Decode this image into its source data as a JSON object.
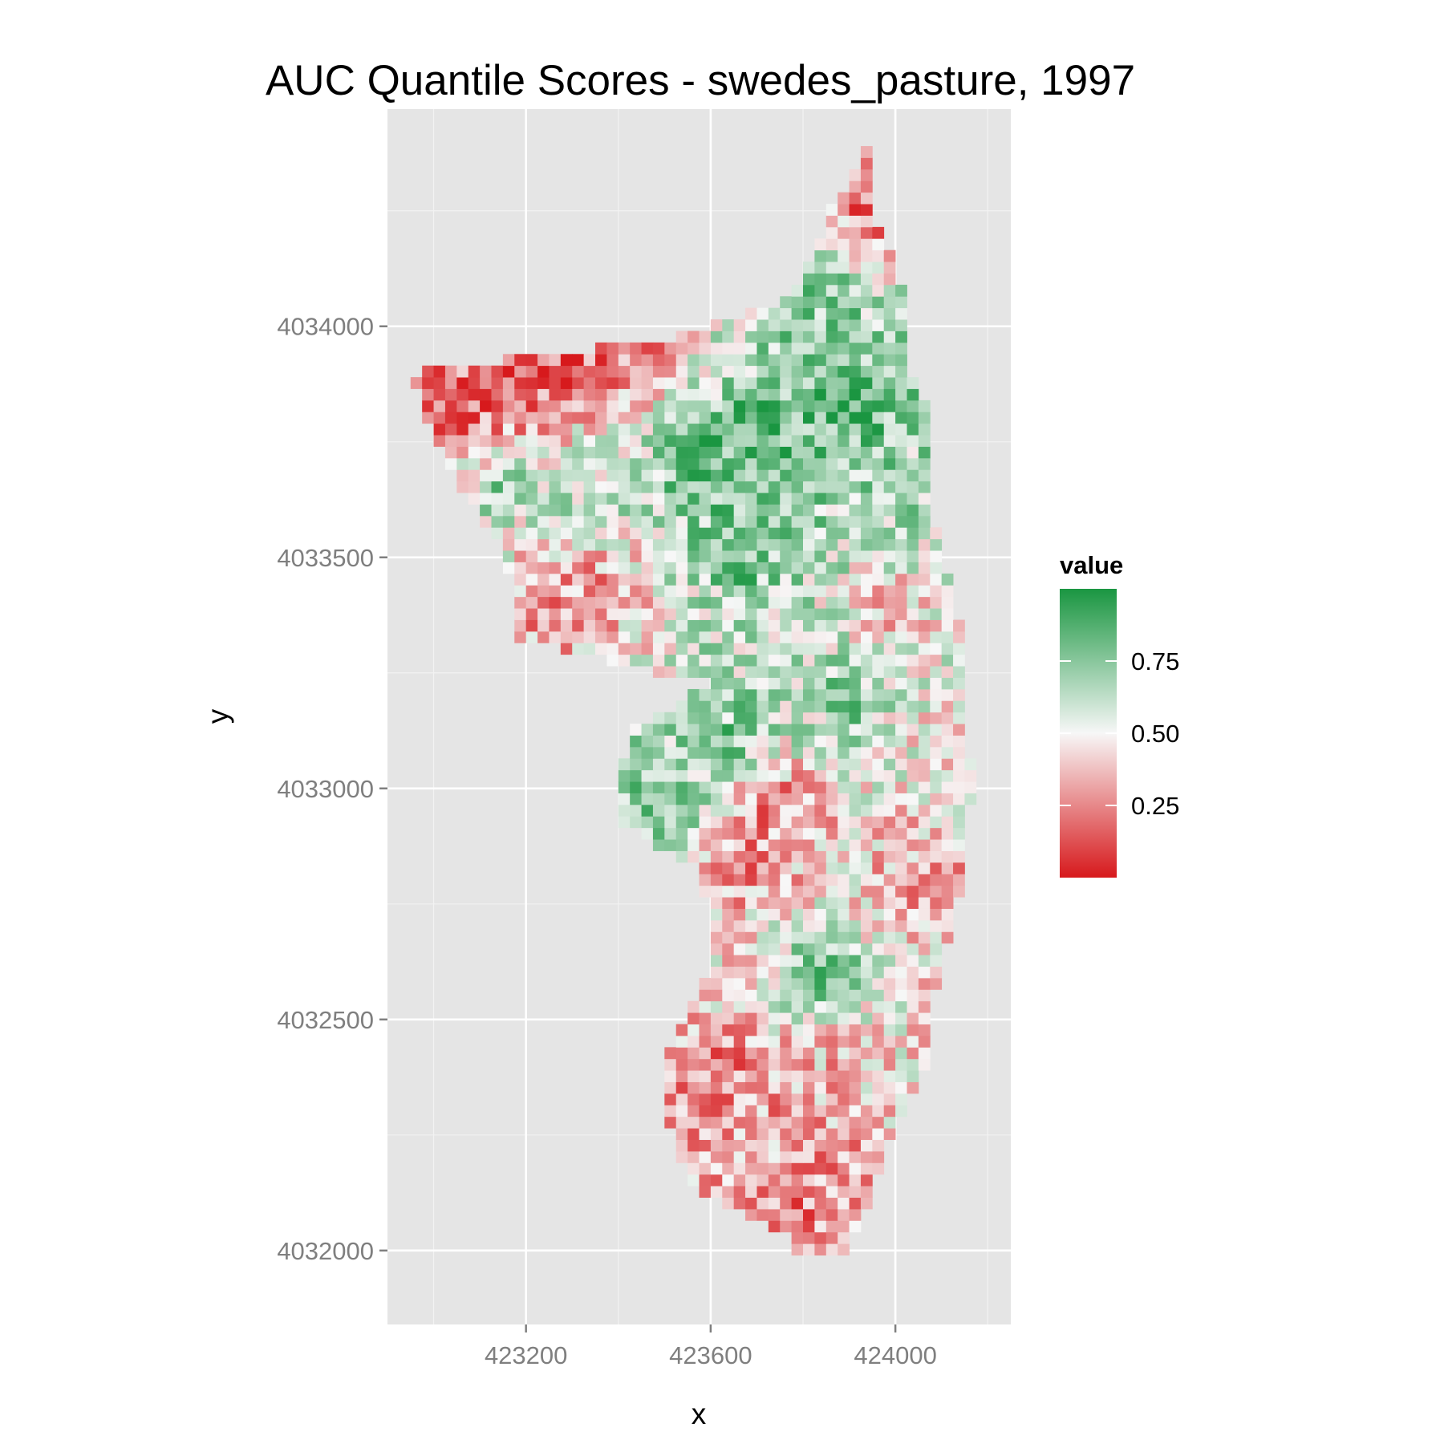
{
  "chart_data": {
    "type": "heatmap",
    "title": "AUC Quantile Scores - swedes_pasture, 1997",
    "xlabel": "x",
    "ylabel": "y",
    "x_ticks": [
      423200,
      423600,
      424000
    ],
    "x_tick_labels": [
      "423200",
      "423600",
      "424000"
    ],
    "y_ticks": [
      4032000,
      4032500,
      4033000,
      4033500,
      4034000
    ],
    "y_tick_labels": [
      "4032000",
      "4032500",
      "4033000",
      "4033500",
      "4034000"
    ],
    "xlim": [
      422900,
      424250
    ],
    "ylim": [
      4031840,
      4034470
    ],
    "grid": true,
    "cell_size": 25,
    "legend": {
      "title": "value",
      "position": "right",
      "breaks": [
        0.25,
        0.5,
        0.75
      ],
      "break_labels": [
        "0.25",
        "0.50",
        "0.75"
      ],
      "range": [
        0,
        1
      ]
    },
    "colors": {
      "low": "#d7191c",
      "mid": "#f7f7f7",
      "high": "#1a9641"
    },
    "extent_rows": [
      {
        "y": 4034350,
        "x_min": 423925,
        "x_max": 423950
      },
      {
        "y": 4034250,
        "x_min": 423850,
        "x_max": 423950
      },
      {
        "y": 4034150,
        "x_min": 423825,
        "x_max": 424000
      },
      {
        "y": 4034050,
        "x_min": 423750,
        "x_max": 424025
      },
      {
        "y": 4033975,
        "x_min": 423525,
        "x_max": 424025
      },
      {
        "y": 4033900,
        "x_min": 422950,
        "x_max": 424025
      },
      {
        "y": 4033825,
        "x_min": 422975,
        "x_max": 424075
      },
      {
        "y": 4033725,
        "x_min": 423025,
        "x_max": 424075
      },
      {
        "y": 4033625,
        "x_min": 423075,
        "x_max": 424075
      },
      {
        "y": 4033525,
        "x_min": 423150,
        "x_max": 424100
      },
      {
        "y": 4033425,
        "x_min": 423175,
        "x_max": 424125
      },
      {
        "y": 4033325,
        "x_min": 423175,
        "x_max": 424150
      },
      {
        "y": 4033225,
        "x_min": 423600,
        "x_max": 424150
      },
      {
        "y": 4033125,
        "x_min": 423425,
        "x_max": 424150
      },
      {
        "y": 4033025,
        "x_min": 423400,
        "x_max": 424175
      },
      {
        "y": 4032925,
        "x_min": 423400,
        "x_max": 424150
      },
      {
        "y": 4032825,
        "x_min": 423575,
        "x_max": 424150
      },
      {
        "y": 4032725,
        "x_min": 423600,
        "x_max": 424125
      },
      {
        "y": 4032625,
        "x_min": 423600,
        "x_max": 424100
      },
      {
        "y": 4032525,
        "x_min": 423550,
        "x_max": 424075
      },
      {
        "y": 4032425,
        "x_min": 423500,
        "x_max": 424075
      },
      {
        "y": 4032325,
        "x_min": 423500,
        "x_max": 424025
      },
      {
        "y": 4032225,
        "x_min": 423525,
        "x_max": 423975
      },
      {
        "y": 4032125,
        "x_min": 423575,
        "x_max": 423950
      },
      {
        "y": 4032025,
        "x_min": 423775,
        "x_max": 423900
      }
    ],
    "value_anchors": [
      {
        "x": 423150,
        "y": 4033875,
        "value": 0.05
      },
      {
        "x": 423300,
        "y": 4033900,
        "value": 0.08
      },
      {
        "x": 423050,
        "y": 4033800,
        "value": 0.12
      },
      {
        "x": 423450,
        "y": 4033950,
        "value": 0.2
      },
      {
        "x": 423150,
        "y": 4033650,
        "value": 0.8
      },
      {
        "x": 423325,
        "y": 4033650,
        "value": 0.7
      },
      {
        "x": 423700,
        "y": 4033775,
        "value": 0.95
      },
      {
        "x": 423575,
        "y": 4033700,
        "value": 0.95
      },
      {
        "x": 423900,
        "y": 4033825,
        "value": 0.9
      },
      {
        "x": 423850,
        "y": 4034050,
        "value": 0.8
      },
      {
        "x": 423675,
        "y": 4033500,
        "value": 0.85
      },
      {
        "x": 423350,
        "y": 4033425,
        "value": 0.18
      },
      {
        "x": 423250,
        "y": 4033375,
        "value": 0.25
      },
      {
        "x": 423950,
        "y": 4033575,
        "value": 0.7
      },
      {
        "x": 423900,
        "y": 4033200,
        "value": 0.82
      },
      {
        "x": 423650,
        "y": 4033100,
        "value": 0.88
      },
      {
        "x": 423500,
        "y": 4032975,
        "value": 0.92
      },
      {
        "x": 423725,
        "y": 4032975,
        "value": 0.1
      },
      {
        "x": 423675,
        "y": 4032850,
        "value": 0.15
      },
      {
        "x": 423850,
        "y": 4032600,
        "value": 0.9
      },
      {
        "x": 423875,
        "y": 4032425,
        "value": 0.35
      },
      {
        "x": 423625,
        "y": 4032375,
        "value": 0.2
      },
      {
        "x": 423800,
        "y": 4032100,
        "value": 0.22
      },
      {
        "x": 424050,
        "y": 4032775,
        "value": 0.2
      },
      {
        "x": 424100,
        "y": 4033100,
        "value": 0.45
      },
      {
        "x": 423950,
        "y": 4034250,
        "value": 0.15
      },
      {
        "x": 423975,
        "y": 4033400,
        "value": 0.3
      }
    ]
  }
}
